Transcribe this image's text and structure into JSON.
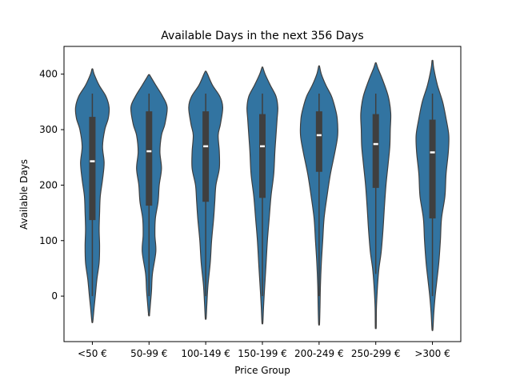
{
  "chart_data": {
    "type": "violin",
    "title": "Available Days in the next 356 Days",
    "xlabel": "Price Group",
    "ylabel": "Available Days",
    "categories": [
      "<50 €",
      "50-99 €",
      "100-149 €",
      "150-199 €",
      "200-249 €",
      "250-299 €",
      ">300 €"
    ],
    "yticks": [
      0,
      100,
      200,
      300,
      400
    ],
    "ylim": [
      -82,
      450
    ],
    "grid": false,
    "colors": {
      "violin": "#3274a1",
      "edge": "#3f3f3f",
      "box": "#3f3f3f",
      "median": "#ffffff"
    },
    "series": [
      {
        "category": "<50 €",
        "q1": 137,
        "median": 243,
        "q3": 323,
        "whisker_low": 0,
        "whisker_high": 365,
        "min_extent": -46,
        "max_extent": 409,
        "profile": [
          [
            -46,
            0.02
          ],
          [
            -20,
            0.08
          ],
          [
            0,
            0.13
          ],
          [
            30,
            0.2
          ],
          [
            60,
            0.3
          ],
          [
            90,
            0.32
          ],
          [
            120,
            0.3
          ],
          [
            150,
            0.32
          ],
          [
            180,
            0.35
          ],
          [
            210,
            0.45
          ],
          [
            240,
            0.52
          ],
          [
            270,
            0.45
          ],
          [
            300,
            0.55
          ],
          [
            320,
            0.7
          ],
          [
            340,
            0.74
          ],
          [
            360,
            0.6
          ],
          [
            380,
            0.3
          ],
          [
            400,
            0.08
          ],
          [
            409,
            0.02
          ]
        ]
      },
      {
        "category": "50-99 €",
        "q1": 163,
        "median": 261,
        "q3": 333,
        "whisker_low": 0,
        "whisker_high": 365,
        "min_extent": -34,
        "max_extent": 399,
        "profile": [
          [
            -34,
            0.02
          ],
          [
            -10,
            0.07
          ],
          [
            10,
            0.11
          ],
          [
            40,
            0.15
          ],
          [
            80,
            0.3
          ],
          [
            110,
            0.26
          ],
          [
            140,
            0.28
          ],
          [
            170,
            0.4
          ],
          [
            200,
            0.45
          ],
          [
            230,
            0.55
          ],
          [
            260,
            0.48
          ],
          [
            290,
            0.55
          ],
          [
            310,
            0.7
          ],
          [
            340,
            0.8
          ],
          [
            360,
            0.6
          ],
          [
            380,
            0.3
          ],
          [
            395,
            0.08
          ],
          [
            399,
            0.02
          ]
        ]
      },
      {
        "category": "100-149 €",
        "q1": 170,
        "median": 270,
        "q3": 333,
        "whisker_low": 0,
        "whisker_high": 365,
        "min_extent": -40,
        "max_extent": 405,
        "profile": [
          [
            -40,
            0.02
          ],
          [
            -15,
            0.05
          ],
          [
            20,
            0.1
          ],
          [
            60,
            0.2
          ],
          [
            100,
            0.26
          ],
          [
            140,
            0.35
          ],
          [
            170,
            0.4
          ],
          [
            200,
            0.45
          ],
          [
            230,
            0.6
          ],
          [
            260,
            0.6
          ],
          [
            290,
            0.55
          ],
          [
            310,
            0.65
          ],
          [
            340,
            0.75
          ],
          [
            360,
            0.62
          ],
          [
            380,
            0.3
          ],
          [
            400,
            0.08
          ],
          [
            405,
            0.02
          ]
        ]
      },
      {
        "category": "150-199 €",
        "q1": 177,
        "median": 270,
        "q3": 328,
        "whisker_low": 0,
        "whisker_high": 365,
        "min_extent": -48,
        "max_extent": 412,
        "profile": [
          [
            -48,
            0.02
          ],
          [
            -20,
            0.05
          ],
          [
            10,
            0.09
          ],
          [
            50,
            0.15
          ],
          [
            100,
            0.22
          ],
          [
            140,
            0.3
          ],
          [
            180,
            0.38
          ],
          [
            220,
            0.5
          ],
          [
            260,
            0.55
          ],
          [
            290,
            0.6
          ],
          [
            320,
            0.65
          ],
          [
            340,
            0.68
          ],
          [
            360,
            0.6
          ],
          [
            380,
            0.35
          ],
          [
            400,
            0.12
          ],
          [
            412,
            0.02
          ]
        ]
      },
      {
        "category": "200-249 €",
        "q1": 224,
        "median": 290,
        "q3": 333,
        "whisker_low": 0,
        "whisker_high": 365,
        "min_extent": -50,
        "max_extent": 414,
        "profile": [
          [
            -50,
            0.02
          ],
          [
            -20,
            0.04
          ],
          [
            20,
            0.06
          ],
          [
            60,
            0.1
          ],
          [
            100,
            0.16
          ],
          [
            140,
            0.22
          ],
          [
            180,
            0.35
          ],
          [
            220,
            0.5
          ],
          [
            260,
            0.7
          ],
          [
            290,
            0.82
          ],
          [
            320,
            0.8
          ],
          [
            340,
            0.7
          ],
          [
            360,
            0.55
          ],
          [
            380,
            0.3
          ],
          [
            400,
            0.1
          ],
          [
            414,
            0.02
          ]
        ]
      },
      {
        "category": "250-299 €",
        "q1": 195,
        "median": 274,
        "q3": 328,
        "whisker_low": 40,
        "whisker_high": 365,
        "min_extent": -56,
        "max_extent": 420,
        "profile": [
          [
            -56,
            0.02
          ],
          [
            -20,
            0.03
          ],
          [
            20,
            0.08
          ],
          [
            50,
            0.14
          ],
          [
            80,
            0.24
          ],
          [
            120,
            0.32
          ],
          [
            160,
            0.38
          ],
          [
            200,
            0.45
          ],
          [
            240,
            0.55
          ],
          [
            270,
            0.62
          ],
          [
            300,
            0.64
          ],
          [
            330,
            0.66
          ],
          [
            360,
            0.55
          ],
          [
            390,
            0.3
          ],
          [
            410,
            0.1
          ],
          [
            420,
            0.02
          ]
        ]
      },
      {
        "category": ">300 €",
        "q1": 140,
        "median": 259,
        "q3": 318,
        "whisker_low": 0,
        "whisker_high": 365,
        "min_extent": -60,
        "max_extent": 424,
        "profile": [
          [
            -60,
            0.02
          ],
          [
            -30,
            0.06
          ],
          [
            0,
            0.12
          ],
          [
            30,
            0.2
          ],
          [
            60,
            0.28
          ],
          [
            100,
            0.35
          ],
          [
            140,
            0.4
          ],
          [
            180,
            0.55
          ],
          [
            220,
            0.6
          ],
          [
            260,
            0.7
          ],
          [
            290,
            0.72
          ],
          [
            320,
            0.6
          ],
          [
            350,
            0.45
          ],
          [
            380,
            0.22
          ],
          [
            410,
            0.06
          ],
          [
            424,
            0.02
          ]
        ]
      }
    ]
  }
}
